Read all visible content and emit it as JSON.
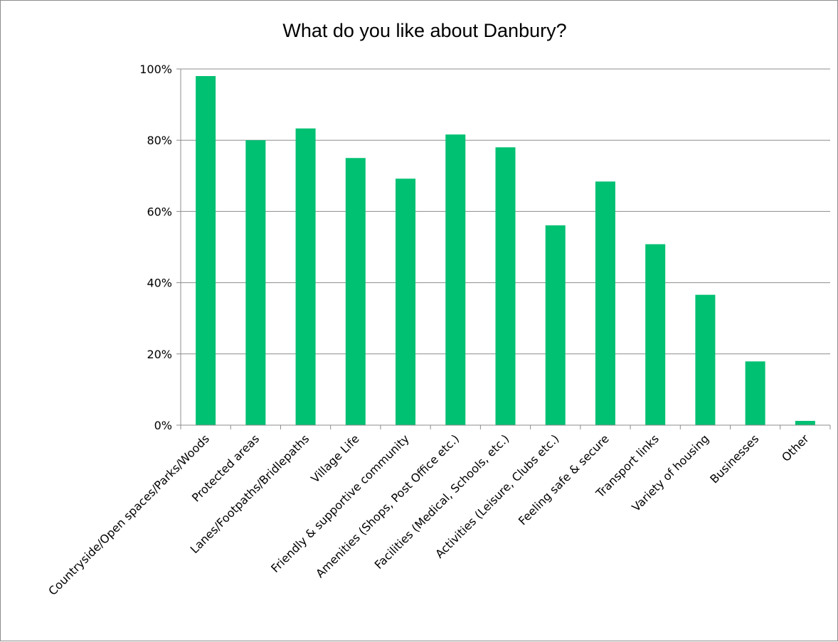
{
  "chart_data": {
    "type": "bar",
    "title": "What do you like about Danbury?",
    "categories": [
      "Countryside/Open spaces/Parks/Woods",
      "Protected areas",
      "Lanes/Footpaths/Bridlepaths",
      "Village Life",
      "Friendly & supportive community",
      "Amenities (Shops, Post Office etc.)",
      "Facilities (Medical, Schools, etc.)",
      "Activities (Leisure, Clubs etc.)",
      "Feeling safe & secure",
      "Transport links",
      "Variety of housing",
      "Businesses",
      "Other"
    ],
    "values": [
      98,
      80,
      83.3,
      75,
      69.2,
      81.6,
      78,
      56.1,
      68.4,
      50.8,
      36.6,
      17.9,
      1.2
    ],
    "ylim": [
      0,
      100
    ],
    "yticks": [
      "0%",
      "20%",
      "40%",
      "60%",
      "80%",
      "100%"
    ],
    "grid": true,
    "legend": "none",
    "bar_color": "#00c072",
    "grid_color": "#8c8c8c"
  }
}
